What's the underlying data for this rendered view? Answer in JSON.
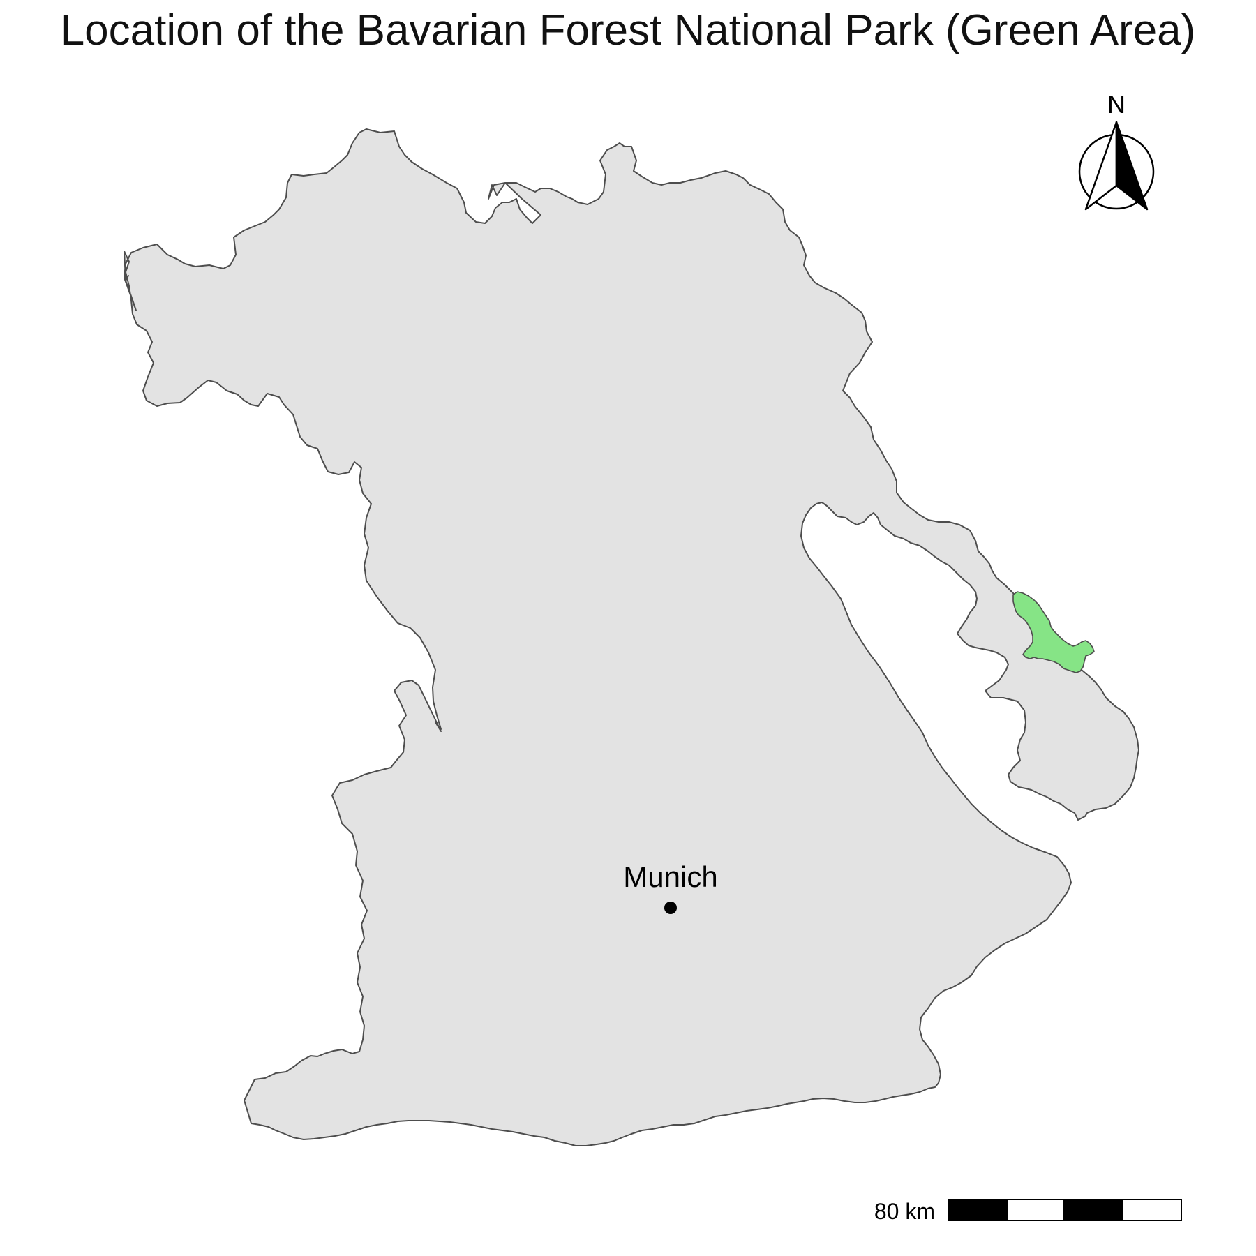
{
  "title": "Location of the Bavarian Forest National Park (Green Area)",
  "north_arrow": {
    "label": "N"
  },
  "city": {
    "name": "Munich"
  },
  "scale_bar": {
    "label": "80 km",
    "segments": 4
  },
  "colors": {
    "region_fill": "#e3e3e3",
    "region_stroke": "#4d4d4d",
    "park_fill": "#86e486",
    "city_marker": "#000000",
    "scale_dark": "#000000",
    "scale_light": "#ffffff"
  }
}
